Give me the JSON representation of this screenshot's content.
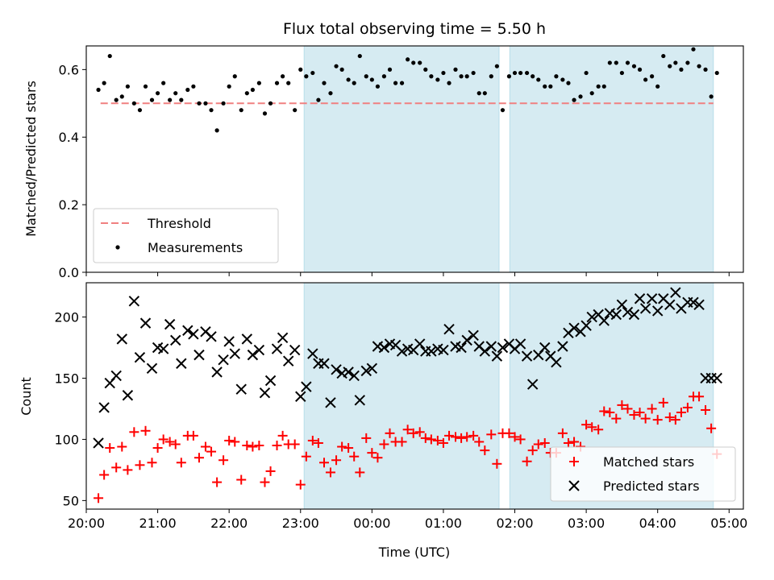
{
  "chart_data": [
    {
      "type": "scatter",
      "title": "Flux total observing time = 5.50 h",
      "xlabel": "",
      "ylabel": "Matched/Predicted stars",
      "xlim": [
        20.0,
        29.2
      ],
      "ylim": [
        0.0,
        0.67
      ],
      "x_tick_values": [
        20,
        21,
        22,
        23,
        24,
        25,
        26,
        27,
        28,
        29
      ],
      "yticks": [
        0.0,
        0.2,
        0.4,
        0.6
      ],
      "ytick_labels": [
        "0.0",
        "0.2",
        "0.4",
        "0.6"
      ],
      "shaded_intervals": [
        [
          23.05,
          25.78
        ],
        [
          25.93,
          28.78
        ]
      ],
      "threshold": {
        "name": "Threshold",
        "value": 0.5,
        "x_range": [
          20.2,
          28.78
        ],
        "color": "#f08080"
      },
      "legend_position": "lower-left",
      "series": [
        {
          "name": "Measurements",
          "color": "#000000",
          "x": [
            20.17,
            20.25,
            20.33,
            20.42,
            20.5,
            20.58,
            20.67,
            20.75,
            20.83,
            20.92,
            21.0,
            21.08,
            21.17,
            21.25,
            21.33,
            21.42,
            21.5,
            21.58,
            21.67,
            21.75,
            21.83,
            21.92,
            22.0,
            22.08,
            22.17,
            22.25,
            22.33,
            22.42,
            22.5,
            22.58,
            22.67,
            22.75,
            22.83,
            22.92,
            23.0,
            23.08,
            23.17,
            23.25,
            23.33,
            23.42,
            23.5,
            23.58,
            23.67,
            23.75,
            23.83,
            23.92,
            24.0,
            24.08,
            24.17,
            24.25,
            24.33,
            24.42,
            24.5,
            24.58,
            24.67,
            24.75,
            24.83,
            24.92,
            25.0,
            25.08,
            25.17,
            25.25,
            25.33,
            25.42,
            25.5,
            25.58,
            25.67,
            25.75,
            25.83,
            25.92,
            26.0,
            26.08,
            26.17,
            26.25,
            26.33,
            26.42,
            26.5,
            26.58,
            26.67,
            26.75,
            26.83,
            26.92,
            27.0,
            27.08,
            27.17,
            27.25,
            27.33,
            27.42,
            27.5,
            27.58,
            27.67,
            27.75,
            27.83,
            27.92,
            28.0,
            28.08,
            28.17,
            28.25,
            28.33,
            28.42,
            28.5,
            28.58,
            28.67,
            28.75,
            28.83
          ],
          "y": [
            0.54,
            0.56,
            0.64,
            0.51,
            0.52,
            0.55,
            0.5,
            0.48,
            0.55,
            0.51,
            0.53,
            0.56,
            0.51,
            0.53,
            0.51,
            0.54,
            0.55,
            0.5,
            0.5,
            0.48,
            0.42,
            0.5,
            0.55,
            0.58,
            0.48,
            0.53,
            0.54,
            0.56,
            0.47,
            0.5,
            0.56,
            0.58,
            0.56,
            0.48,
            0.6,
            0.58,
            0.59,
            0.51,
            0.56,
            0.53,
            0.61,
            0.6,
            0.57,
            0.56,
            0.64,
            0.58,
            0.57,
            0.55,
            0.58,
            0.6,
            0.56,
            0.56,
            0.63,
            0.62,
            0.62,
            0.6,
            0.58,
            0.57,
            0.59,
            0.56,
            0.6,
            0.58,
            0.58,
            0.59,
            0.53,
            0.53,
            0.58,
            0.61,
            0.48,
            0.58,
            0.59,
            0.59,
            0.59,
            0.58,
            0.57,
            0.55,
            0.55,
            0.58,
            0.57,
            0.56,
            0.51,
            0.52,
            0.59,
            0.53,
            0.55,
            0.55,
            0.62,
            0.62,
            0.59,
            0.62,
            0.61,
            0.6,
            0.57,
            0.58,
            0.55,
            0.64,
            0.61,
            0.62,
            0.6,
            0.62,
            0.66,
            0.61,
            0.6,
            0.52,
            0.59
          ]
        }
      ]
    },
    {
      "type": "scatter",
      "title": "",
      "xlabel": "Time (UTC)",
      "ylabel": "Count",
      "xlim": [
        20.0,
        29.2
      ],
      "ylim": [
        43,
        228
      ],
      "x_tick_values": [
        20,
        21,
        22,
        23,
        24,
        25,
        26,
        27,
        28,
        29
      ],
      "x_tick_labels": [
        "20:00",
        "21:00",
        "22:00",
        "23:00",
        "00:00",
        "01:00",
        "02:00",
        "03:00",
        "04:00",
        "05:00"
      ],
      "yticks": [
        50,
        100,
        150,
        200
      ],
      "ytick_labels": [
        "50",
        "100",
        "150",
        "200"
      ],
      "shaded_intervals": [
        [
          23.05,
          25.78
        ],
        [
          25.93,
          28.78
        ]
      ],
      "legend_position": "lower-right",
      "series": [
        {
          "name": "Matched stars",
          "color": "#ff0000",
          "marker": "plus",
          "x": [
            20.17,
            20.25,
            20.33,
            20.42,
            20.5,
            20.58,
            20.67,
            20.75,
            20.83,
            20.92,
            21.0,
            21.08,
            21.17,
            21.25,
            21.33,
            21.42,
            21.5,
            21.58,
            21.67,
            21.75,
            21.83,
            21.92,
            22.0,
            22.08,
            22.17,
            22.25,
            22.33,
            22.42,
            22.5,
            22.58,
            22.67,
            22.75,
            22.83,
            22.92,
            23.0,
            23.08,
            23.17,
            23.25,
            23.33,
            23.42,
            23.5,
            23.58,
            23.67,
            23.75,
            23.83,
            23.92,
            24.0,
            24.08,
            24.17,
            24.25,
            24.33,
            24.42,
            24.5,
            24.58,
            24.67,
            24.75,
            24.83,
            24.92,
            25.0,
            25.08,
            25.17,
            25.25,
            25.33,
            25.42,
            25.5,
            25.58,
            25.67,
            25.75,
            25.83,
            25.92,
            26.0,
            26.08,
            26.17,
            26.25,
            26.33,
            26.42,
            26.5,
            26.58,
            26.67,
            26.75,
            26.83,
            26.92,
            27.0,
            27.08,
            27.17,
            27.25,
            27.33,
            27.42,
            27.5,
            27.58,
            27.67,
            27.75,
            27.83,
            27.92,
            28.0,
            28.08,
            28.17,
            28.25,
            28.33,
            28.42,
            28.5,
            28.58,
            28.67,
            28.75,
            28.83
          ],
          "y": [
            52,
            71,
            93,
            77,
            94,
            75,
            106,
            79,
            107,
            81,
            93,
            100,
            98,
            96,
            81,
            103,
            103,
            85,
            94,
            90,
            65,
            83,
            99,
            98,
            67,
            95,
            94,
            95,
            65,
            74,
            95,
            103,
            96,
            96,
            63,
            86,
            99,
            97,
            81,
            73,
            83,
            94,
            93,
            86,
            73,
            101,
            89,
            85,
            96,
            105,
            98,
            98,
            108,
            105,
            106,
            101,
            100,
            99,
            97,
            103,
            102,
            101,
            102,
            103,
            98,
            91,
            104,
            80,
            105,
            105,
            102,
            100,
            82,
            91,
            96,
            97,
            89,
            89,
            105,
            97,
            98,
            94,
            112,
            110,
            108,
            123,
            122,
            117,
            128,
            125,
            120,
            122,
            117,
            125,
            116,
            130,
            118,
            116,
            122,
            126,
            135,
            135,
            124,
            109,
            88
          ]
        },
        {
          "name": "Predicted stars",
          "color": "#000000",
          "marker": "x",
          "x": [
            20.17,
            20.25,
            20.33,
            20.42,
            20.5,
            20.58,
            20.67,
            20.75,
            20.83,
            20.92,
            21.0,
            21.08,
            21.17,
            21.25,
            21.33,
            21.42,
            21.5,
            21.58,
            21.67,
            21.75,
            21.83,
            21.92,
            22.0,
            22.08,
            22.17,
            22.25,
            22.33,
            22.42,
            22.5,
            22.58,
            22.67,
            22.75,
            22.83,
            22.92,
            23.0,
            23.08,
            23.17,
            23.25,
            23.33,
            23.42,
            23.5,
            23.58,
            23.67,
            23.75,
            23.83,
            23.92,
            24.0,
            24.08,
            24.17,
            24.25,
            24.33,
            24.42,
            24.5,
            24.58,
            24.67,
            24.75,
            24.83,
            24.92,
            25.0,
            25.08,
            25.17,
            25.25,
            25.33,
            25.42,
            25.5,
            25.58,
            25.67,
            25.75,
            25.83,
            25.92,
            26.0,
            26.08,
            26.17,
            26.25,
            26.33,
            26.42,
            26.5,
            26.58,
            26.67,
            26.75,
            26.83,
            26.92,
            27.0,
            27.08,
            27.17,
            27.25,
            27.33,
            27.42,
            27.5,
            27.58,
            27.67,
            27.75,
            27.83,
            27.92,
            28.0,
            28.08,
            28.17,
            28.25,
            28.33,
            28.42,
            28.5,
            28.58,
            28.67,
            28.75,
            28.83
          ],
          "y": [
            97,
            126,
            146,
            152,
            182,
            136,
            213,
            167,
            195,
            158,
            175,
            174,
            194,
            181,
            162,
            189,
            186,
            169,
            188,
            184,
            155,
            165,
            180,
            170,
            141,
            182,
            169,
            173,
            138,
            148,
            174,
            183,
            164,
            173,
            135,
            143,
            170,
            162,
            162,
            130,
            157,
            154,
            155,
            152,
            132,
            156,
            158,
            176,
            175,
            178,
            177,
            172,
            174,
            173,
            178,
            172,
            172,
            174,
            173,
            190,
            176,
            175,
            181,
            185,
            176,
            172,
            176,
            168,
            175,
            178,
            174,
            178,
            168,
            145,
            169,
            175,
            168,
            163,
            176,
            187,
            191,
            188,
            193,
            200,
            202,
            197,
            203,
            202,
            210,
            204,
            202,
            215,
            207,
            215,
            205,
            215,
            210,
            220,
            207,
            212,
            212,
            210,
            150,
            150,
            150
          ]
        }
      ]
    }
  ]
}
